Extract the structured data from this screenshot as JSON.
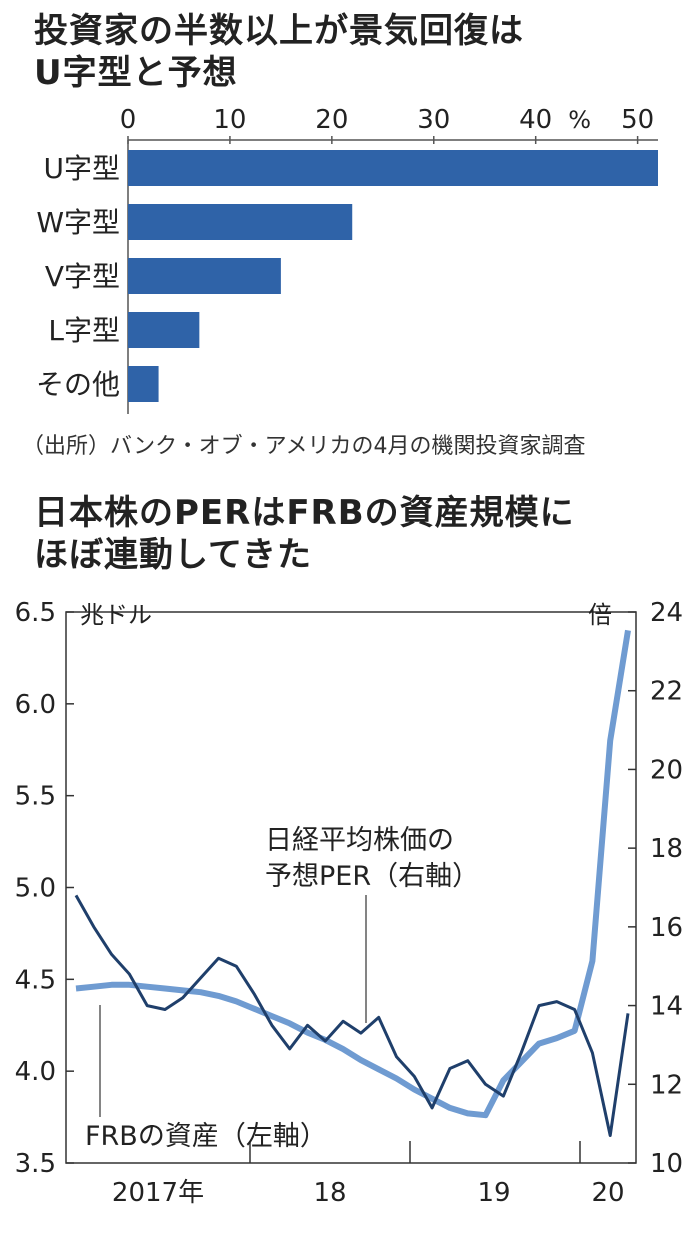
{
  "chart_data": [
    {
      "type": "bar",
      "orientation": "horizontal",
      "title": "投資家の半数以上が景気回復は\nU字型と予想",
      "unit": "%",
      "xlim": [
        0,
        52
      ],
      "ticks": [
        "0",
        "10",
        "20",
        "30",
        "40",
        "50"
      ],
      "categories": [
        "U字型",
        "W字型",
        "V字型",
        "L字型",
        "その他"
      ],
      "values": [
        52,
        22,
        15,
        7,
        3
      ],
      "color": "#2f63a8",
      "source": "（出所）バンク・オブ・アメリカの4月の機関投資家調査"
    },
    {
      "type": "line",
      "title": "日本株のPERはFRBの資産規模に\nほぼ連動してきた",
      "x_labels": [
        "2017年",
        "18",
        "19",
        "20"
      ],
      "left_axis": {
        "unit": "兆ドル",
        "ylim": [
          3.5,
          6.5
        ],
        "ticks": [
          "6.5",
          "6.0",
          "5.5",
          "5.0",
          "4.5",
          "4.0",
          "3.5"
        ]
      },
      "right_axis": {
        "unit": "倍",
        "ylim": [
          10,
          24
        ],
        "ticks": [
          "24",
          "22",
          "20",
          "18",
          "16",
          "14",
          "12",
          "10"
        ]
      },
      "series": [
        {
          "name": "FRBの資産（左軸）",
          "axis": "left",
          "color": "#6f9bd1",
          "points": [
            [
              0,
              4.45
            ],
            [
              1,
              4.46
            ],
            [
              2,
              4.47
            ],
            [
              3,
              4.47
            ],
            [
              4,
              4.46
            ],
            [
              5,
              4.45
            ],
            [
              6,
              4.44
            ],
            [
              7,
              4.43
            ],
            [
              8,
              4.41
            ],
            [
              9,
              4.38
            ],
            [
              10,
              4.34
            ],
            [
              11,
              4.3
            ],
            [
              12,
              4.26
            ],
            [
              13,
              4.21
            ],
            [
              14,
              4.17
            ],
            [
              15,
              4.12
            ],
            [
              16,
              4.06
            ],
            [
              17,
              4.01
            ],
            [
              18,
              3.96
            ],
            [
              19,
              3.9
            ],
            [
              20,
              3.85
            ],
            [
              21,
              3.8
            ],
            [
              22,
              3.77
            ],
            [
              23,
              3.76
            ],
            [
              24,
              3.95
            ],
            [
              25,
              4.05
            ],
            [
              26,
              4.15
            ],
            [
              27,
              4.18
            ],
            [
              28,
              4.22
            ],
            [
              29,
              4.6
            ],
            [
              30,
              5.8
            ],
            [
              31,
              6.4
            ]
          ]
        },
        {
          "name": "日経平均株価の予想PER（右軸）",
          "axis": "right",
          "color": "#1f3f6b",
          "points": [
            [
              0,
              16.8
            ],
            [
              1,
              16.0
            ],
            [
              2,
              15.3
            ],
            [
              3,
              14.8
            ],
            [
              4,
              14.0
            ],
            [
              5,
              13.9
            ],
            [
              6,
              14.2
            ],
            [
              7,
              14.7
            ],
            [
              8,
              15.2
            ],
            [
              9,
              15.0
            ],
            [
              10,
              14.3
            ],
            [
              11,
              13.5
            ],
            [
              12,
              12.9
            ],
            [
              13,
              13.5
            ],
            [
              14,
              13.1
            ],
            [
              15,
              13.6
            ],
            [
              16,
              13.3
            ],
            [
              17,
              13.7
            ],
            [
              18,
              12.7
            ],
            [
              19,
              12.2
            ],
            [
              20,
              11.4
            ],
            [
              21,
              12.4
            ],
            [
              22,
              12.6
            ],
            [
              23,
              12.0
            ],
            [
              24,
              11.7
            ],
            [
              25,
              12.8
            ],
            [
              26,
              14.0
            ],
            [
              27,
              14.1
            ],
            [
              28,
              13.9
            ],
            [
              29,
              12.8
            ],
            [
              30,
              10.7
            ],
            [
              31,
              13.8
            ]
          ]
        }
      ],
      "labels": {
        "per": "日経平均株価の\n予想PER（右軸）",
        "frb": "FRBの資産（左軸）"
      }
    }
  ]
}
